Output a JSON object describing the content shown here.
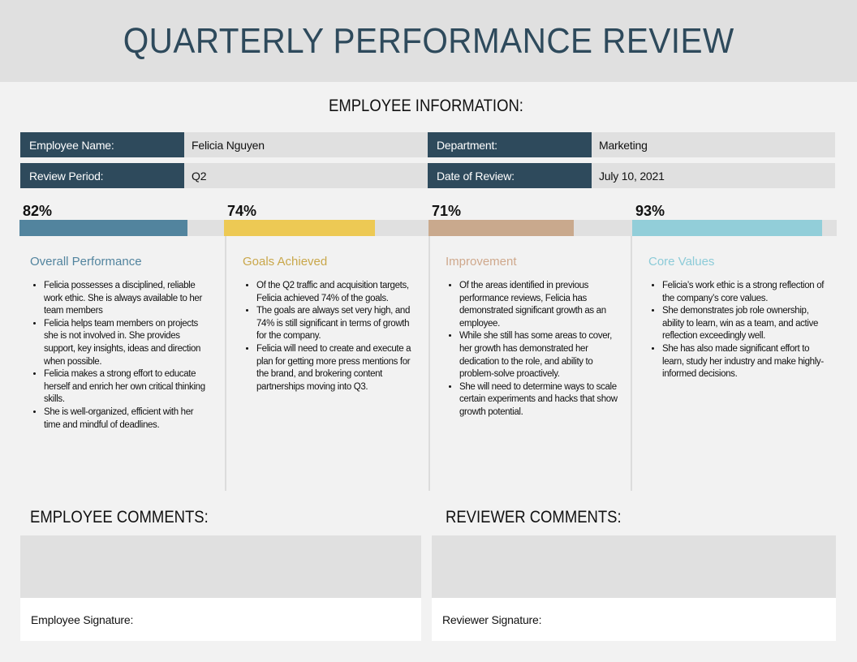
{
  "title": "QUARTERLY PERFORMANCE REVIEW",
  "employee_info": {
    "heading": "EMPLOYEE INFORMATION:",
    "fields": [
      {
        "label": "Employee Name:",
        "value": "Felicia Nguyen"
      },
      {
        "label": "Department:",
        "value": "Marketing"
      },
      {
        "label": "Review Period:",
        "value": "Q2"
      },
      {
        "label": "Date of Review:",
        "value": "July 10, 2021"
      }
    ]
  },
  "metrics": [
    {
      "percent_label": "82%",
      "percent": 82,
      "title": "Overall Performance",
      "color": "#52849e",
      "bullets": [
        "Felicia possesses a disciplined, reliable work ethic. She is always available to her team members",
        "Felicia helps team members on projects she is not involved in. She provides support, key insights, ideas and direction when possible.",
        "Felicia makes a strong effort to educate herself and enrich her own critical thinking skills.",
        "She is well-organized, efficient with her time and mindful of deadlines."
      ]
    },
    {
      "percent_label": "74%",
      "percent": 74,
      "title": "Goals Achieved",
      "color": "#edc954",
      "title_color": "#c9a74a",
      "bullets": [
        "Of the Q2 traffic and acquisition targets, Felicia achieved 74% of the goals.",
        "The goals are always set very high, and 74% is still significant in terms of growth for the company.",
        "Felicia will need to create and execute a plan for getting more press mentions for the brand, and brokering content partnerships moving into Q3."
      ]
    },
    {
      "percent_label": "71%",
      "percent": 71,
      "title": "Improvement",
      "color": "#c9a98d",
      "title_color": "#cfa88c",
      "bullets": [
        "Of the areas identified in previous performance reviews, Felicia has demonstrated significant growth as an employee.",
        "While she still has some areas to cover, her growth has demonstrated her dedication to the role, and ability to problem-solve proactively.",
        "She will need to determine ways to scale certain experiments and hacks that show growth potential."
      ]
    },
    {
      "percent_label": "93%",
      "percent": 93,
      "title": "Core Values",
      "color": "#92ced9",
      "title_color": "#8ccbd8",
      "bullets": [
        "Felicia’s work ethic is a strong reflection of the company’s core values.",
        "She demonstrates job role ownership, ability to learn, win as a team, and active reflection exceedingly well.",
        "She has also made significant effort to learn, study her industry and make highly-informed decisions."
      ]
    }
  ],
  "employee_comments": {
    "heading": "EMPLOYEE COMMENTS:",
    "signature_label": "Employee Signature:"
  },
  "reviewer_comments": {
    "heading": "REVIEWER COMMENTS:",
    "signature_label": "Reviewer Signature:"
  }
}
